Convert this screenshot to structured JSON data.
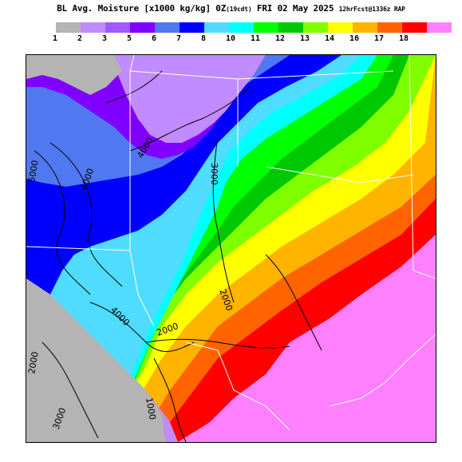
{
  "title": {
    "main": "BL Avg. Moisture [x1000 kg/kg] 0Z",
    "paren": "(19cdt)",
    "date": " FRI 02 May 2025 ",
    "forecast": "12hrFcst@1336z RAP"
  },
  "legend": {
    "colors": [
      "#b4b4b4",
      "#c08cff",
      "#a05aff",
      "#8000ff",
      "#5078f0",
      "#0000ff",
      "#50dcff",
      "#00ffff",
      "#00ff00",
      "#00c800",
      "#80ff00",
      "#ffff00",
      "#ffb400",
      "#ff6400",
      "#ff0000",
      "#ff80ff"
    ],
    "labels": [
      "1",
      "2",
      "3",
      "5",
      "6",
      "7",
      "8",
      "10",
      "11",
      "12",
      "13",
      "14",
      "16",
      "17",
      "18"
    ]
  },
  "map": {
    "contour_labels": [
      "5000",
      "4000",
      "4000",
      "3000",
      "2000",
      "4000",
      "2000",
      "1000",
      "2000",
      "3000"
    ]
  }
}
